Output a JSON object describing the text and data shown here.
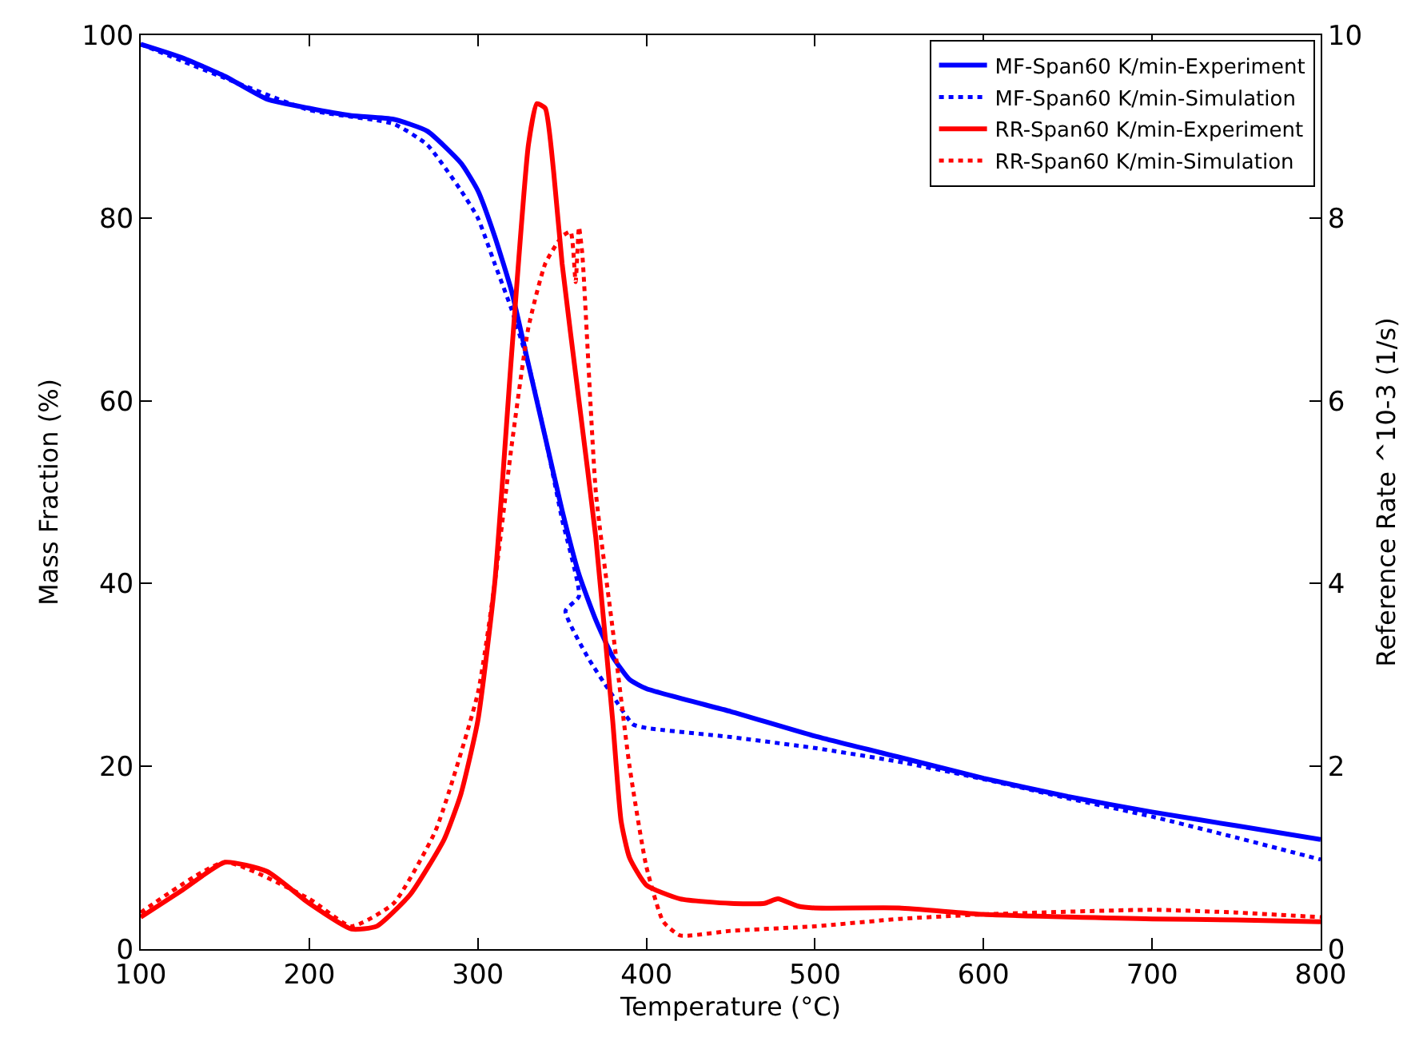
{
  "chart_data": {
    "type": "line",
    "xlabel": "Temperature (°C)",
    "ylabel": "Mass Fraction (%)",
    "y2label": "Reference Rate ^10-3 (1/s)",
    "xlim": [
      100,
      800
    ],
    "xticks": [
      100,
      200,
      300,
      400,
      500,
      600,
      700,
      800
    ],
    "ylim": [
      0,
      100
    ],
    "yticks": [
      0,
      20,
      40,
      60,
      80,
      100
    ],
    "y2lim": [
      0,
      10
    ],
    "y2ticks": [
      0,
      2,
      4,
      6,
      8,
      10
    ],
    "legend": "top right",
    "series": [
      {
        "name": "MF-Span60 K/min-Experiment",
        "color": "#0000ff",
        "line_style": "solid",
        "x": [
          100,
          125,
          150,
          175,
          200,
          225,
          250,
          270,
          290,
          300,
          310,
          320,
          330,
          340,
          350,
          360,
          370,
          380,
          390,
          400,
          450,
          500,
          550,
          600,
          650,
          700,
          750,
          800
        ],
        "values": [
          99,
          97.5,
          95.5,
          93,
          92,
          91.2,
          90.8,
          89.5,
          86,
          83,
          78,
          72,
          64,
          56,
          48,
          41,
          36,
          32,
          29.5,
          28.5,
          26,
          23.3,
          21,
          18.7,
          16.7,
          15,
          13.5,
          12
        ]
      },
      {
        "name": "MF-Span60 K/min-Simulation",
        "color": "#0000ff",
        "line_style": "dotted",
        "x": [
          100,
          150,
          200,
          250,
          270,
          290,
          300,
          310,
          320,
          330,
          340,
          350,
          360,
          352,
          365,
          379,
          392,
          400,
          450,
          500,
          550,
          600,
          650,
          700,
          750,
          800
        ],
        "values": [
          99,
          95.3,
          91.8,
          90.3,
          88,
          83,
          80,
          75,
          70,
          64,
          56,
          47,
          38.6,
          37,
          32,
          28,
          24.6,
          24.2,
          23.2,
          22,
          20.5,
          18.6,
          16.5,
          14.5,
          12.2,
          9.8
        ]
      },
      {
        "name": "RR-Span60 K/min-Experiment",
        "color": "#ff0000",
        "line_style": "solid",
        "axis": "y2",
        "x": [
          100,
          125,
          150,
          175,
          200,
          225,
          240,
          260,
          280,
          290,
          300,
          310,
          320,
          330,
          335,
          340,
          345,
          350,
          360,
          370,
          380,
          385,
          390,
          400,
          420,
          450,
          470,
          478,
          490,
          500,
          550,
          600,
          700,
          750,
          800
        ],
        "values": [
          0.35,
          0.65,
          0.95,
          0.85,
          0.5,
          0.22,
          0.25,
          0.6,
          1.2,
          1.7,
          2.5,
          4.0,
          6.5,
          8.8,
          9.25,
          9.2,
          8.5,
          7.5,
          6.0,
          4.5,
          2.5,
          1.4,
          1.0,
          0.7,
          0.55,
          0.5,
          0.5,
          0.55,
          0.47,
          0.45,
          0.45,
          0.38,
          0.33,
          0.32,
          0.3
        ]
      },
      {
        "name": "RR-Span60 K/min-Simulation",
        "color": "#ff0000",
        "line_style": "dotted",
        "axis": "y2",
        "x": [
          100,
          150,
          200,
          225,
          250,
          275,
          300,
          310,
          320,
          330,
          340,
          350,
          355,
          358,
          360,
          362,
          370,
          380,
          390,
          400,
          410,
          420,
          450,
          500,
          550,
          600,
          700,
          750,
          800
        ],
        "values": [
          0.4,
          0.95,
          0.55,
          0.25,
          0.5,
          1.3,
          2.8,
          4.0,
          5.5,
          6.8,
          7.5,
          7.8,
          7.85,
          7.3,
          7.9,
          7.6,
          5.0,
          3.5,
          2.0,
          0.9,
          0.3,
          0.15,
          0.2,
          0.25,
          0.33,
          0.38,
          0.43,
          0.4,
          0.35
        ]
      }
    ]
  }
}
